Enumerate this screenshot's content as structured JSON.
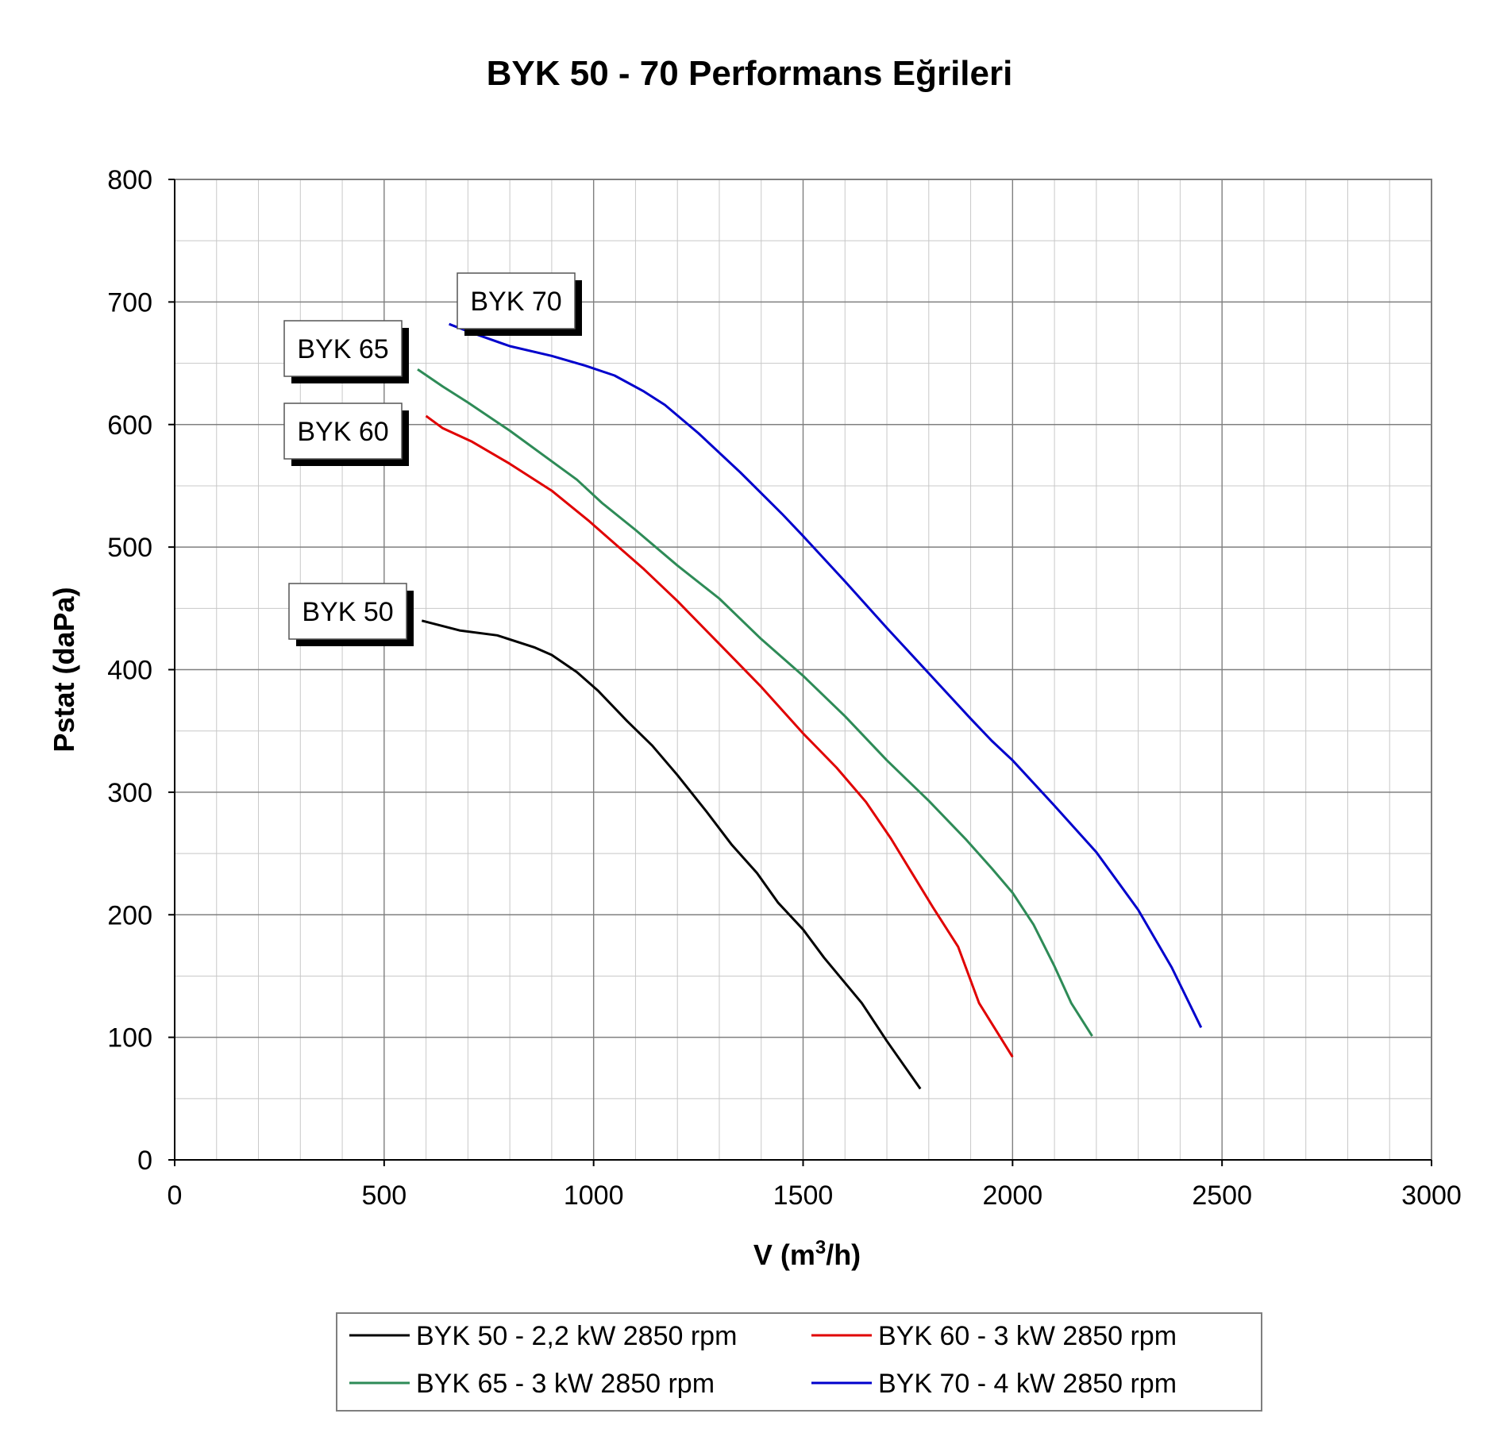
{
  "chart_data": {
    "type": "line",
    "title": "BYK 50 - 70 Performans Eğrileri",
    "xlabel": "V (m",
    "xlabel_sup": "3",
    "xlabel_tail": "/h)",
    "ylabel": "Pstat (daPa)",
    "xlim": [
      0,
      3000
    ],
    "ylim": [
      0,
      800
    ],
    "x_ticks": [
      0,
      500,
      1000,
      1500,
      2000,
      2500,
      3000
    ],
    "y_ticks": [
      0,
      100,
      200,
      300,
      400,
      500,
      600,
      700,
      800
    ],
    "x_minor_step": 100,
    "y_minor_step": 50,
    "grid": true,
    "legend_position": "bottom-center",
    "series": [
      {
        "name": "BYK 50 - 2,2 kW 2850 rpm",
        "callout": "BYK 50",
        "color": "#000000",
        "points": [
          [
            590,
            440
          ],
          [
            680,
            432
          ],
          [
            770,
            428
          ],
          [
            860,
            418
          ],
          [
            900,
            412
          ],
          [
            960,
            398
          ],
          [
            1010,
            383
          ],
          [
            1080,
            358
          ],
          [
            1140,
            338
          ],
          [
            1200,
            314
          ],
          [
            1270,
            284
          ],
          [
            1330,
            257
          ],
          [
            1390,
            234
          ],
          [
            1440,
            210
          ],
          [
            1500,
            188
          ],
          [
            1550,
            165
          ],
          [
            1640,
            128
          ],
          [
            1700,
            97
          ],
          [
            1780,
            58
          ]
        ]
      },
      {
        "name": "BYK 60 - 3 kW 2850 rpm",
        "callout": "BYK 60",
        "color": "#e00000",
        "points": [
          [
            600,
            607
          ],
          [
            640,
            597
          ],
          [
            710,
            586
          ],
          [
            800,
            568
          ],
          [
            900,
            546
          ],
          [
            990,
            521
          ],
          [
            1050,
            503
          ],
          [
            1120,
            482
          ],
          [
            1200,
            456
          ],
          [
            1300,
            421
          ],
          [
            1400,
            386
          ],
          [
            1500,
            348
          ],
          [
            1580,
            320
          ],
          [
            1650,
            292
          ],
          [
            1710,
            262
          ],
          [
            1760,
            234
          ],
          [
            1810,
            206
          ],
          [
            1870,
            174
          ],
          [
            1920,
            128
          ],
          [
            2000,
            84
          ]
        ]
      },
      {
        "name": "BYK 65 - 3 kW 2850 rpm",
        "callout": "BYK 65",
        "color": "#2e8b57",
        "points": [
          [
            580,
            645
          ],
          [
            640,
            631
          ],
          [
            700,
            618
          ],
          [
            800,
            595
          ],
          [
            900,
            570
          ],
          [
            960,
            555
          ],
          [
            1020,
            536
          ],
          [
            1100,
            514
          ],
          [
            1200,
            485
          ],
          [
            1300,
            458
          ],
          [
            1400,
            425
          ],
          [
            1500,
            395
          ],
          [
            1600,
            362
          ],
          [
            1700,
            326
          ],
          [
            1800,
            293
          ],
          [
            1890,
            261
          ],
          [
            1950,
            238
          ],
          [
            2000,
            218
          ],
          [
            2050,
            192
          ],
          [
            2100,
            158
          ],
          [
            2140,
            128
          ],
          [
            2190,
            101
          ]
        ]
      },
      {
        "name": "BYK 70 - 4 kW 2850 rpm",
        "callout": "BYK 70",
        "color": "#0000cc",
        "points": [
          [
            655,
            682
          ],
          [
            700,
            676
          ],
          [
            800,
            664
          ],
          [
            900,
            656
          ],
          [
            980,
            648
          ],
          [
            1050,
            640
          ],
          [
            1120,
            627
          ],
          [
            1170,
            616
          ],
          [
            1250,
            593
          ],
          [
            1350,
            561
          ],
          [
            1450,
            527
          ],
          [
            1500,
            509
          ],
          [
            1600,
            472
          ],
          [
            1700,
            434
          ],
          [
            1800,
            397
          ],
          [
            1900,
            360
          ],
          [
            1950,
            342
          ],
          [
            2000,
            326
          ],
          [
            2100,
            289
          ],
          [
            2200,
            251
          ],
          [
            2300,
            204
          ],
          [
            2380,
            157
          ],
          [
            2450,
            108
          ]
        ]
      }
    ]
  }
}
